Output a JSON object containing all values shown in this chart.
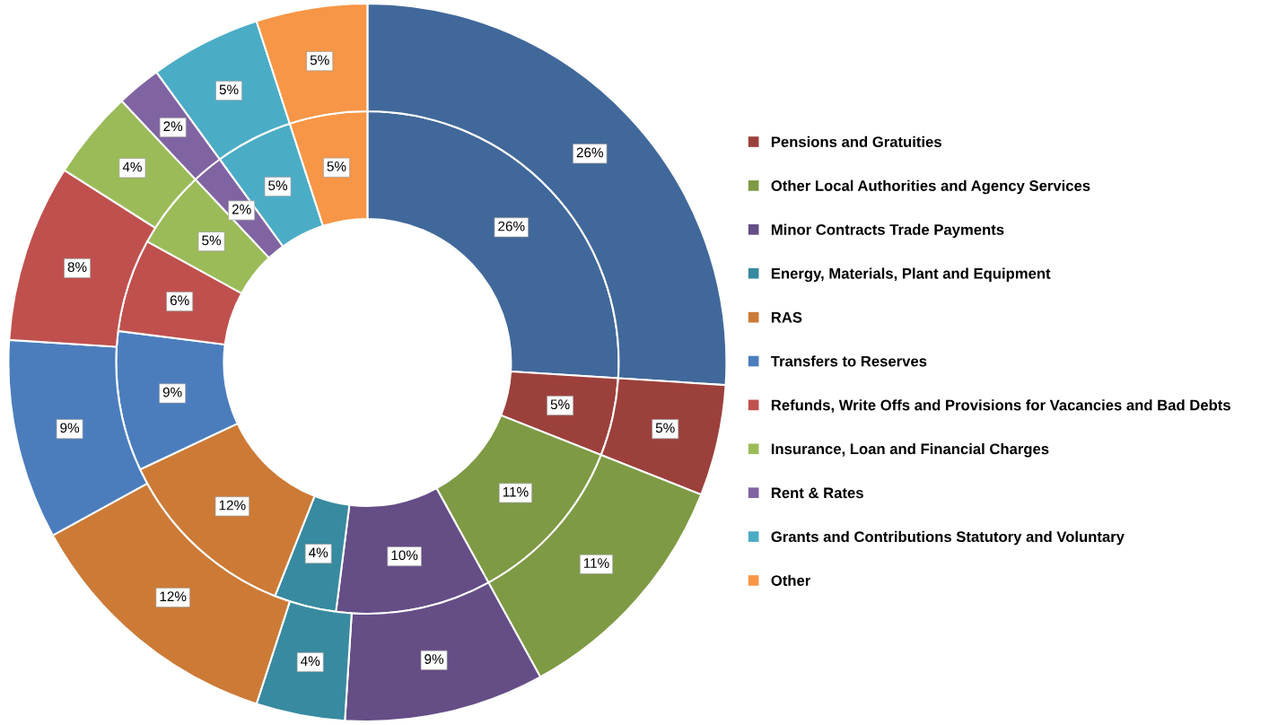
{
  "chart_data": {
    "type": "donut",
    "categories": [
      null,
      "Pensions and Gratuities",
      "Other Local Authorities and Agency Services",
      "Minor Contracts Trade Payments",
      "Energy, Materials, Plant and Equipment",
      "RAS",
      "Transfers to Reserves",
      "Refunds, Write Offs and Provisions for Vacancies and Bad Debts",
      "Insurance, Loan and Financial Charges",
      "Rent & Rates",
      "Grants and Contributions Statutory and Voluntary",
      "Other"
    ],
    "series": [
      {
        "values": [
          26,
          5,
          11,
          10,
          4,
          12,
          9,
          6,
          5,
          2,
          5,
          5
        ],
        "value_labels": [
          "26%",
          "5%",
          "11%",
          "10%",
          "4%",
          "12%",
          "9%",
          "6%",
          "5%",
          "2%",
          "5%",
          "5%"
        ],
        "colors": [
          "#41689a",
          "#9c403c",
          "#7e9a44",
          "#654d86",
          "#378a9f",
          "#cc7a36",
          "#4b7dbd",
          "#c0504d",
          "#9bbb59",
          "#8064a2",
          "#4bacc6",
          "#f79646"
        ]
      },
      {
        "values": [
          26,
          5,
          11,
          9,
          4,
          12,
          9,
          8,
          4,
          2,
          5,
          5
        ],
        "value_labels": [
          "26%",
          "5%",
          "11%",
          "9%",
          "4%",
          "12%",
          "9%",
          "8%",
          "4%",
          "2%",
          "5%",
          "5%"
        ],
        "colors": [
          "#41689a",
          "#9c403c",
          "#7e9a44",
          "#654d86",
          "#378a9f",
          "#cc7a36",
          "#4b7dbd",
          "#c0504d",
          "#9bbb59",
          "#8064a2",
          "#4bacc6",
          "#f79646"
        ]
      }
    ],
    "legend": "right"
  }
}
